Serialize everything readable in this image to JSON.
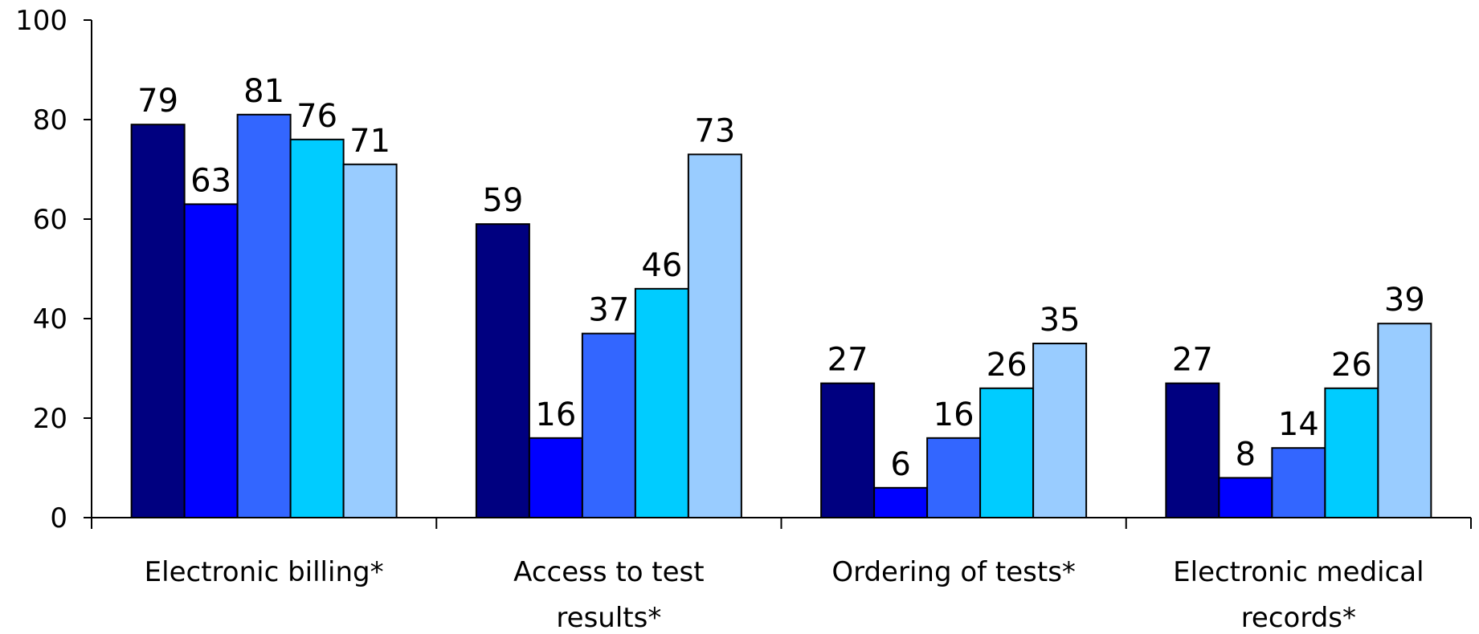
{
  "chart_data": {
    "type": "bar",
    "title": "",
    "xlabel": "",
    "ylabel": "",
    "ylim": [
      0,
      100
    ],
    "yticks": [
      0,
      20,
      40,
      60,
      80,
      100
    ],
    "grid": false,
    "legend": "none",
    "categories": [
      [
        "Electronic billing*"
      ],
      [
        "Access to test",
        "results*"
      ],
      [
        "Ordering of tests*"
      ],
      [
        "Electronic medical",
        "records*"
      ]
    ],
    "series": [
      {
        "color": "#000080",
        "values": [
          79,
          59,
          27,
          27
        ]
      },
      {
        "color": "#0000FF",
        "values": [
          63,
          16,
          6,
          8
        ]
      },
      {
        "color": "#3366FF",
        "values": [
          81,
          37,
          16,
          14
        ]
      },
      {
        "color": "#00CCFF",
        "values": [
          76,
          46,
          26,
          26
        ]
      },
      {
        "color": "#99CCFF",
        "values": [
          71,
          73,
          35,
          39
        ]
      }
    ]
  }
}
